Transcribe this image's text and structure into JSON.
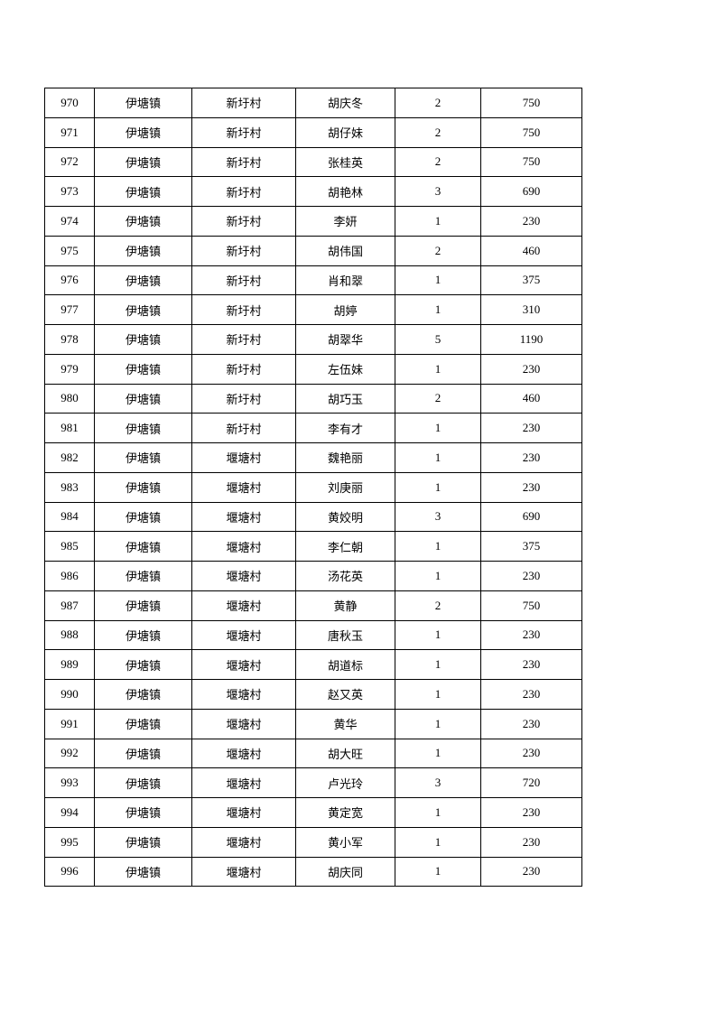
{
  "table": {
    "rows": [
      [
        "970",
        "伊塘镇",
        "新圩村",
        "胡庆冬",
        "2",
        "750"
      ],
      [
        "971",
        "伊塘镇",
        "新圩村",
        "胡仔妹",
        "2",
        "750"
      ],
      [
        "972",
        "伊塘镇",
        "新圩村",
        "张桂英",
        "2",
        "750"
      ],
      [
        "973",
        "伊塘镇",
        "新圩村",
        "胡艳林",
        "3",
        "690"
      ],
      [
        "974",
        "伊塘镇",
        "新圩村",
        "李妍",
        "1",
        "230"
      ],
      [
        "975",
        "伊塘镇",
        "新圩村",
        "胡伟国",
        "2",
        "460"
      ],
      [
        "976",
        "伊塘镇",
        "新圩村",
        "肖和翠",
        "1",
        "375"
      ],
      [
        "977",
        "伊塘镇",
        "新圩村",
        "胡婷",
        "1",
        "310"
      ],
      [
        "978",
        "伊塘镇",
        "新圩村",
        "胡翠华",
        "5",
        "1190"
      ],
      [
        "979",
        "伊塘镇",
        "新圩村",
        "左伍妹",
        "1",
        "230"
      ],
      [
        "980",
        "伊塘镇",
        "新圩村",
        "胡巧玉",
        "2",
        "460"
      ],
      [
        "981",
        "伊塘镇",
        "新圩村",
        "李有才",
        "1",
        "230"
      ],
      [
        "982",
        "伊塘镇",
        "堰塘村",
        "魏艳丽",
        "1",
        "230"
      ],
      [
        "983",
        "伊塘镇",
        "堰塘村",
        "刘庚丽",
        "1",
        "230"
      ],
      [
        "984",
        "伊塘镇",
        "堰塘村",
        "黄姣明",
        "3",
        "690"
      ],
      [
        "985",
        "伊塘镇",
        "堰塘村",
        "李仁朝",
        "1",
        "375"
      ],
      [
        "986",
        "伊塘镇",
        "堰塘村",
        "汤花英",
        "1",
        "230"
      ],
      [
        "987",
        "伊塘镇",
        "堰塘村",
        "黄静",
        "2",
        "750"
      ],
      [
        "988",
        "伊塘镇",
        "堰塘村",
        "唐秋玉",
        "1",
        "230"
      ],
      [
        "989",
        "伊塘镇",
        "堰塘村",
        "胡道标",
        "1",
        "230"
      ],
      [
        "990",
        "伊塘镇",
        "堰塘村",
        "赵又英",
        "1",
        "230"
      ],
      [
        "991",
        "伊塘镇",
        "堰塘村",
        "黄华",
        "1",
        "230"
      ],
      [
        "992",
        "伊塘镇",
        "堰塘村",
        "胡大旺",
        "1",
        "230"
      ],
      [
        "993",
        "伊塘镇",
        "堰塘村",
        "卢光玲",
        "3",
        "720"
      ],
      [
        "994",
        "伊塘镇",
        "堰塘村",
        "黄定宽",
        "1",
        "230"
      ],
      [
        "995",
        "伊塘镇",
        "堰塘村",
        "黄小军",
        "1",
        "230"
      ],
      [
        "996",
        "伊塘镇",
        "堰塘村",
        "胡庆同",
        "1",
        "230"
      ]
    ]
  }
}
